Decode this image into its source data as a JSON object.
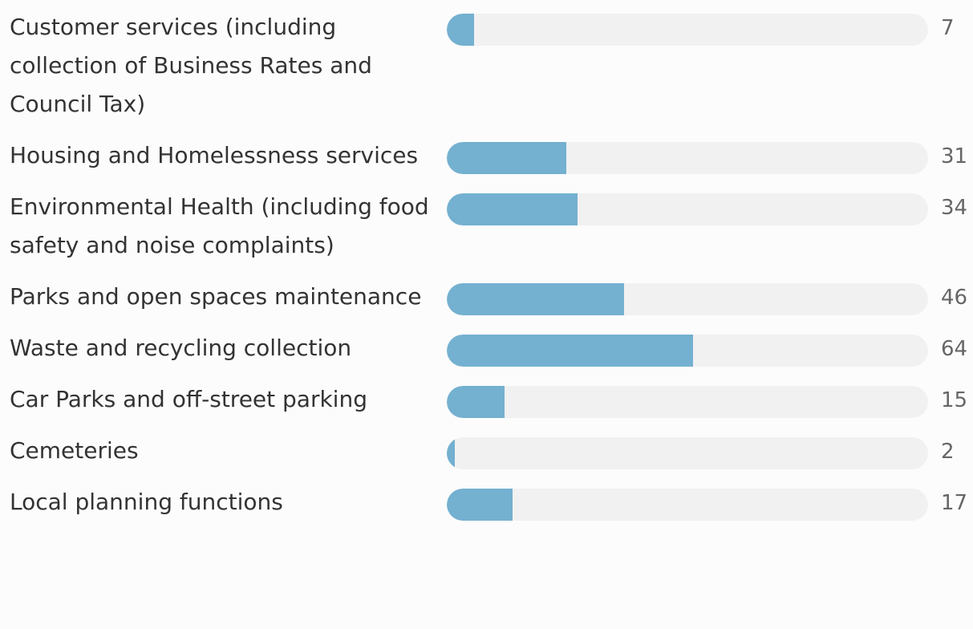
{
  "chart_data": {
    "type": "bar",
    "orientation": "horizontal",
    "categories": [
      "Customer services (including collection of Business Rates and Council Tax)",
      "Housing and Homelessness services",
      "Environmental Health (including food safety and noise complaints)",
      "Parks and open spaces maintenance",
      "Waste and recycling collection",
      "Car Parks and off-street parking",
      "Cemeteries",
      "Local planning functions"
    ],
    "values": [
      7,
      31,
      34,
      46,
      64,
      15,
      2,
      17
    ],
    "color": "#74b0d0",
    "track_color": "#f1f1f1",
    "xlim": [
      0,
      125
    ]
  }
}
